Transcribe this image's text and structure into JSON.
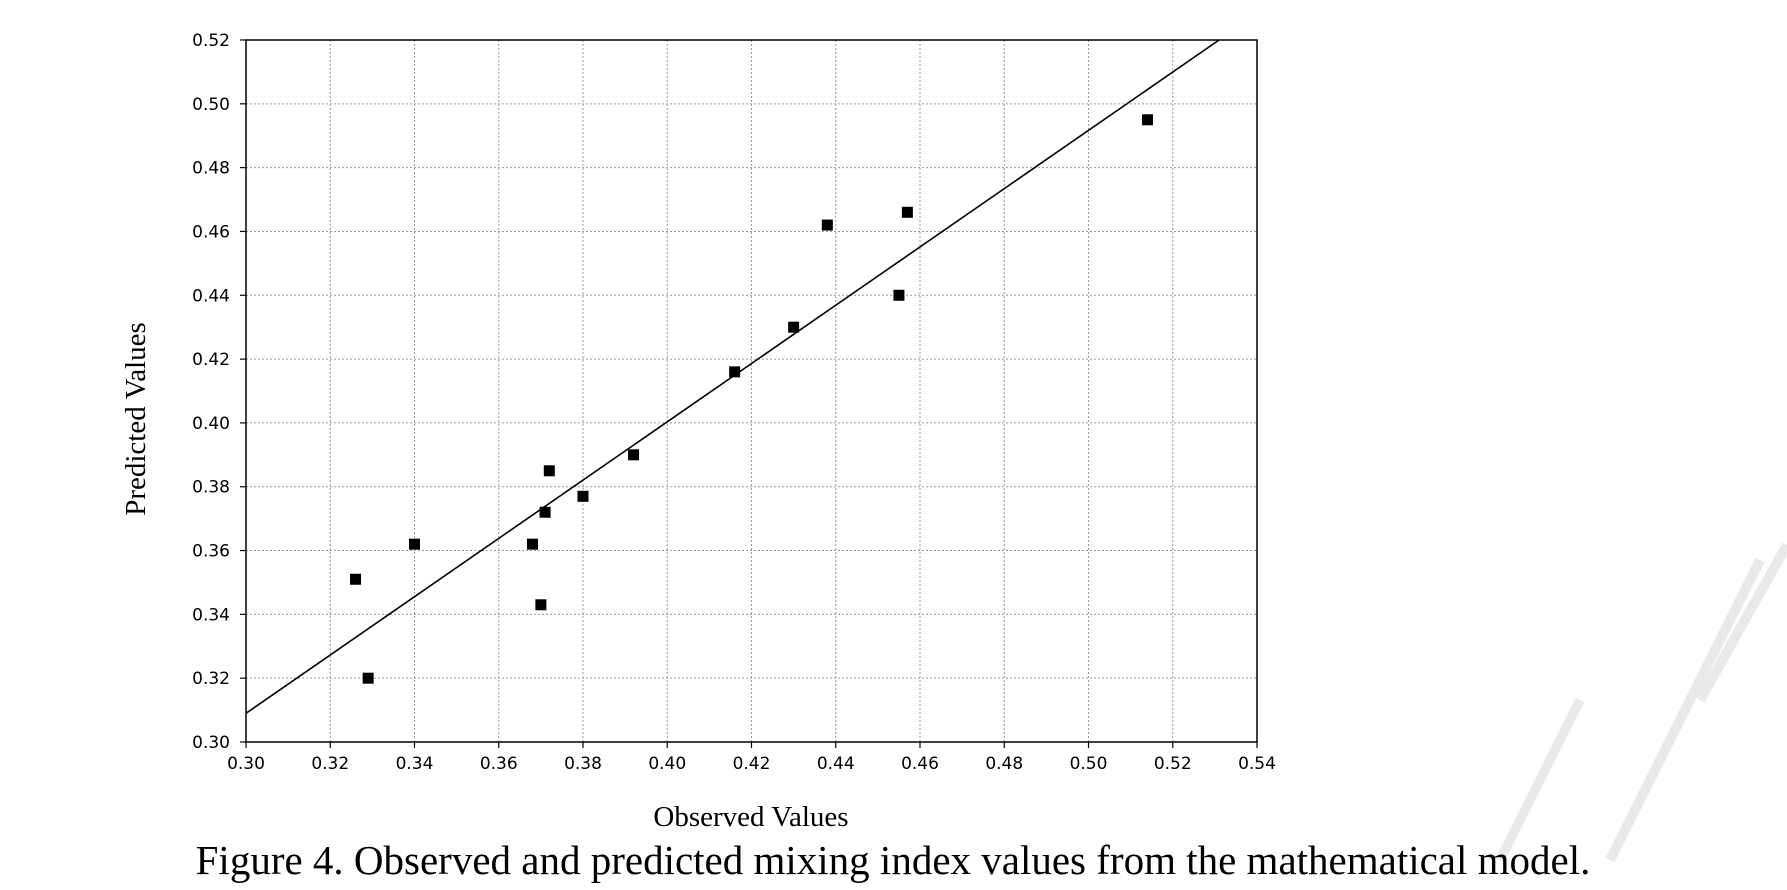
{
  "chart_data": {
    "type": "scatter",
    "title": "",
    "xlabel": "Observed Values",
    "ylabel": "Predicted Values",
    "xlim": [
      0.3,
      0.54
    ],
    "ylim": [
      0.3,
      0.52
    ],
    "x_ticks": [
      "0.30",
      "0.32",
      "0.34",
      "0.36",
      "0.38",
      "0.40",
      "0.42",
      "0.44",
      "0.46",
      "0.48",
      "0.50",
      "0.52",
      "0.54"
    ],
    "y_ticks": [
      "0.30",
      "0.32",
      "0.34",
      "0.36",
      "0.38",
      "0.40",
      "0.42",
      "0.44",
      "0.46",
      "0.48",
      "0.50",
      "0.52"
    ],
    "grid": true,
    "legend": "none",
    "points": [
      {
        "x": 0.326,
        "y": 0.351
      },
      {
        "x": 0.329,
        "y": 0.32
      },
      {
        "x": 0.34,
        "y": 0.362
      },
      {
        "x": 0.368,
        "y": 0.362
      },
      {
        "x": 0.37,
        "y": 0.343
      },
      {
        "x": 0.371,
        "y": 0.372
      },
      {
        "x": 0.372,
        "y": 0.385
      },
      {
        "x": 0.38,
        "y": 0.377
      },
      {
        "x": 0.392,
        "y": 0.39
      },
      {
        "x": 0.416,
        "y": 0.416
      },
      {
        "x": 0.43,
        "y": 0.43
      },
      {
        "x": 0.438,
        "y": 0.462
      },
      {
        "x": 0.455,
        "y": 0.44
      },
      {
        "x": 0.457,
        "y": 0.466
      },
      {
        "x": 0.514,
        "y": 0.495
      }
    ],
    "fit_line": {
      "x": [
        0.3,
        0.531
      ],
      "y": [
        0.309,
        0.52
      ]
    },
    "marker_color": "#000000"
  },
  "caption": "Figure 4. Observed and predicted mixing index values from the mathematical model."
}
